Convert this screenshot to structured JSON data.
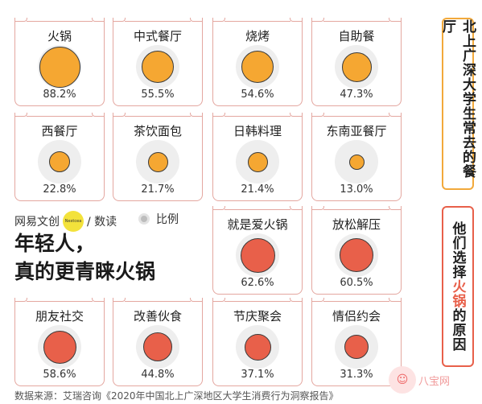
{
  "colors": {
    "orange": "#f5a732",
    "red": "#e8604a",
    "disc_bg": "#eeeeee",
    "card_border": "#e4a7a0"
  },
  "cards_top": [
    {
      "label": "火锅",
      "pct": "88.2%",
      "value": 88.2
    },
    {
      "label": "中式餐厅",
      "pct": "55.5%",
      "value": 55.5
    },
    {
      "label": "烧烤",
      "pct": "54.6%",
      "value": 54.6
    },
    {
      "label": "自助餐",
      "pct": "47.3%",
      "value": 47.3
    },
    {
      "label": "西餐厅",
      "pct": "22.8%",
      "value": 22.8
    },
    {
      "label": "茶饮面包",
      "pct": "21.7%",
      "value": 21.7
    },
    {
      "label": "日韩料理",
      "pct": "21.4%",
      "value": 21.4
    },
    {
      "label": "东南亚餐厅",
      "pct": "13.0%",
      "value": 13.0
    }
  ],
  "cards_bottom": [
    {
      "label": "就是爱火锅",
      "pct": "62.6%",
      "value": 62.6
    },
    {
      "label": "放松解压",
      "pct": "60.5%",
      "value": 60.5
    },
    {
      "label": "朋友社交",
      "pct": "58.6%",
      "value": 58.6
    },
    {
      "label": "改善伙食",
      "pct": "44.8%",
      "value": 44.8
    },
    {
      "label": "节庆聚会",
      "pct": "37.1%",
      "value": 37.1
    },
    {
      "label": "情侣约会",
      "pct": "31.3%",
      "value": 31.3
    }
  ],
  "side_top": "北上广深大学生常去的餐厅",
  "side_bottom": {
    "before": "他们选择",
    "highlight": "火锅",
    "after": "的原因"
  },
  "brand": {
    "name": "网易文创",
    "dot": "Nextcea",
    "suffix": "/ 数读"
  },
  "legend_label": "比例",
  "headline": {
    "line1": "年轻人，",
    "line2": "真的更青睐火锅"
  },
  "source": "数据来源：艾瑞咨询《2020年中国北上广深地区大学生消费行为洞察报告》",
  "watermark": "八宝网"
}
